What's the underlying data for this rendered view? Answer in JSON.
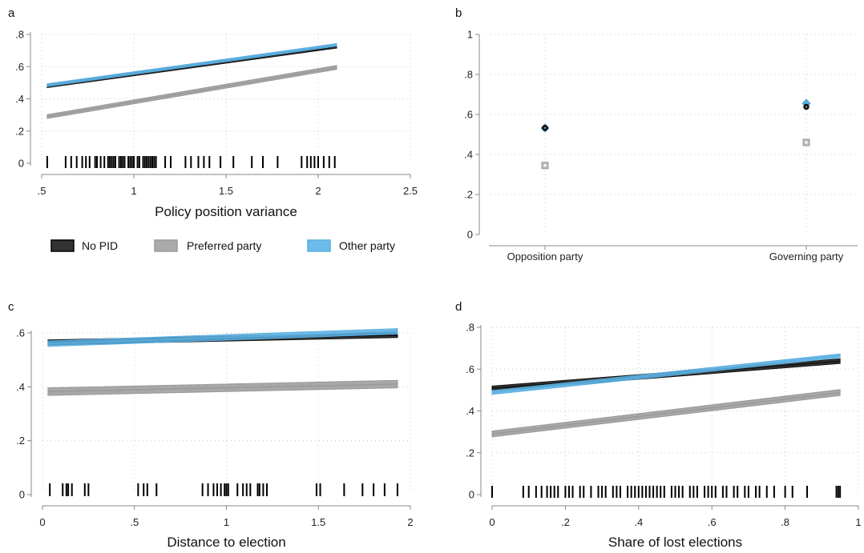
{
  "chart_data": [
    {
      "panel": "a",
      "type": "line",
      "xlabel": "Policy position variance",
      "ylabel": "",
      "xlim": [
        0.5,
        2.5
      ],
      "ylim": [
        0,
        0.8
      ],
      "xticks": [
        {
          "v": 0.5,
          "label": ".5"
        },
        {
          "v": 1,
          "label": "1"
        },
        {
          "v": 1.5,
          "label": "1.5"
        },
        {
          "v": 2,
          "label": "2"
        },
        {
          "v": 2.5,
          "label": "2.5"
        }
      ],
      "yticks": [
        {
          "v": 0,
          "label": "0"
        },
        {
          "v": 0.2,
          "label": ".2"
        },
        {
          "v": 0.4,
          "label": ".4"
        },
        {
          "v": 0.6,
          "label": ".6"
        },
        {
          "v": 0.8,
          "label": ".8"
        }
      ],
      "grid": true,
      "series": [
        {
          "name": "No PID",
          "color": "#111111",
          "x": [
            0.53,
            2.1
          ],
          "y": [
            0.48,
            0.725
          ],
          "band": 0.01,
          "dashed_center": true
        },
        {
          "name": "Preferred party",
          "color": "#999999",
          "x": [
            0.53,
            2.1
          ],
          "y": [
            0.29,
            0.595
          ],
          "band": 0.012
        },
        {
          "name": "Other party",
          "color": "#5aafe0",
          "x": [
            0.53,
            2.1
          ],
          "y": [
            0.485,
            0.735
          ],
          "band": 0.008
        }
      ],
      "rug": [
        0.53,
        0.63,
        0.66,
        0.69,
        0.72,
        0.74,
        0.76,
        0.79,
        0.8,
        0.82,
        0.84,
        0.86,
        0.87,
        0.88,
        0.89,
        0.9,
        0.92,
        0.93,
        0.94,
        0.95,
        0.97,
        0.98,
        0.99,
        1.0,
        1.02,
        1.03,
        1.05,
        1.06,
        1.07,
        1.08,
        1.09,
        1.1,
        1.11,
        1.12,
        1.17,
        1.2,
        1.28,
        1.31,
        1.35,
        1.38,
        1.41,
        1.47,
        1.54,
        1.64,
        1.7,
        1.78,
        1.91,
        1.94,
        1.96,
        1.98,
        2.0,
        2.03,
        2.06,
        2.09
      ]
    },
    {
      "panel": "b",
      "type": "scatter",
      "xlabel": "",
      "ylabel": "",
      "categories": [
        "Opposition party",
        "Governing party"
      ],
      "ylim": [
        0,
        1
      ],
      "yticks": [
        {
          "v": 0,
          "label": "0"
        },
        {
          "v": 0.2,
          "label": ".2"
        },
        {
          "v": 0.4,
          "label": ".4"
        },
        {
          "v": 0.6,
          "label": ".6"
        },
        {
          "v": 0.8,
          "label": ".8"
        },
        {
          "v": 1,
          "label": "1"
        }
      ],
      "grid": true,
      "series": [
        {
          "name": "No PID",
          "color": "#111111",
          "values": [
            0.533,
            0.638
          ]
        },
        {
          "name": "Preferred party",
          "color": "#999999",
          "values": [
            0.345,
            0.46
          ]
        },
        {
          "name": "Other party",
          "color": "#5aafe0",
          "values": [
            0.532,
            0.655
          ]
        }
      ]
    },
    {
      "panel": "c",
      "type": "line",
      "xlabel": "Distance to election",
      "ylabel": "",
      "xlim": [
        0,
        2
      ],
      "ylim": [
        0,
        0.6
      ],
      "xticks": [
        {
          "v": 0,
          "label": "0"
        },
        {
          "v": 0.5,
          "label": ".5"
        },
        {
          "v": 1,
          "label": "1"
        },
        {
          "v": 1.5,
          "label": "1.5"
        },
        {
          "v": 2,
          "label": "2"
        }
      ],
      "yticks": [
        {
          "v": 0,
          "label": "0"
        },
        {
          "v": 0.2,
          "label": ".2"
        },
        {
          "v": 0.4,
          "label": ".4"
        },
        {
          "v": 0.6,
          "label": ".6"
        }
      ],
      "grid": true,
      "series": [
        {
          "name": "No PID",
          "color": "#111111",
          "x": [
            0.03,
            1.93
          ],
          "y": [
            0.565,
            0.592
          ],
          "band": 0.009,
          "dashed_center": true
        },
        {
          "name": "Preferred party",
          "color": "#999999",
          "x": [
            0.03,
            1.93
          ],
          "y": [
            0.382,
            0.41
          ],
          "band": 0.014
        },
        {
          "name": "Other party",
          "color": "#5aafe0",
          "x": [
            0.03,
            1.93
          ],
          "y": [
            0.56,
            0.606
          ],
          "band": 0.01
        }
      ],
      "rug": [
        0.04,
        0.11,
        0.13,
        0.14,
        0.16,
        0.23,
        0.25,
        0.52,
        0.55,
        0.57,
        0.62,
        0.87,
        0.9,
        0.93,
        0.95,
        0.97,
        0.99,
        1.0,
        1.01,
        1.06,
        1.09,
        1.11,
        1.13,
        1.17,
        1.18,
        1.2,
        1.22,
        1.49,
        1.51,
        1.64,
        1.74,
        1.8,
        1.86,
        1.93
      ]
    },
    {
      "panel": "d",
      "type": "line",
      "xlabel": "Share of lost elections",
      "ylabel": "",
      "xlim": [
        0,
        1
      ],
      "ylim": [
        0,
        0.8
      ],
      "xticks": [
        {
          "v": 0,
          "label": "0"
        },
        {
          "v": 0.2,
          "label": ".2"
        },
        {
          "v": 0.4,
          "label": ".4"
        },
        {
          "v": 0.6,
          "label": ".6"
        },
        {
          "v": 0.8,
          "label": ".8"
        },
        {
          "v": 1,
          "label": "1"
        }
      ],
      "yticks": [
        {
          "v": 0,
          "label": "0"
        },
        {
          "v": 0.2,
          "label": ".2"
        },
        {
          "v": 0.4,
          "label": ".4"
        },
        {
          "v": 0.6,
          "label": ".6"
        },
        {
          "v": 0.8,
          "label": ".8"
        }
      ],
      "grid": true,
      "series": [
        {
          "name": "No PID",
          "color": "#111111",
          "x": [
            0.0,
            0.95
          ],
          "y": [
            0.508,
            0.638
          ],
          "band": 0.011
        },
        {
          "name": "Preferred party",
          "color": "#999999",
          "x": [
            0.0,
            0.95
          ],
          "y": [
            0.29,
            0.488
          ],
          "band": 0.014
        },
        {
          "name": "Other party",
          "color": "#5aafe0",
          "x": [
            0.0,
            0.95
          ],
          "y": [
            0.488,
            0.664
          ],
          "band": 0.009
        }
      ],
      "rug": [
        0.0,
        0.085,
        0.1,
        0.12,
        0.135,
        0.15,
        0.16,
        0.17,
        0.18,
        0.2,
        0.21,
        0.22,
        0.24,
        0.25,
        0.27,
        0.29,
        0.3,
        0.31,
        0.33,
        0.34,
        0.35,
        0.37,
        0.38,
        0.39,
        0.4,
        0.41,
        0.42,
        0.43,
        0.44,
        0.45,
        0.46,
        0.47,
        0.49,
        0.5,
        0.51,
        0.52,
        0.54,
        0.55,
        0.56,
        0.58,
        0.59,
        0.6,
        0.61,
        0.63,
        0.64,
        0.66,
        0.67,
        0.69,
        0.7,
        0.72,
        0.73,
        0.75,
        0.77,
        0.8,
        0.82,
        0.86,
        0.94,
        0.945,
        0.95
      ]
    }
  ],
  "legend": [
    {
      "label": "No PID",
      "color": "#333333",
      "edge": "#000000"
    },
    {
      "label": "Preferred party",
      "color": "#aaaaaa",
      "edge": "#999999"
    },
    {
      "label": "Other party",
      "color": "#6cbbe8",
      "edge": "#5aafe0"
    }
  ]
}
